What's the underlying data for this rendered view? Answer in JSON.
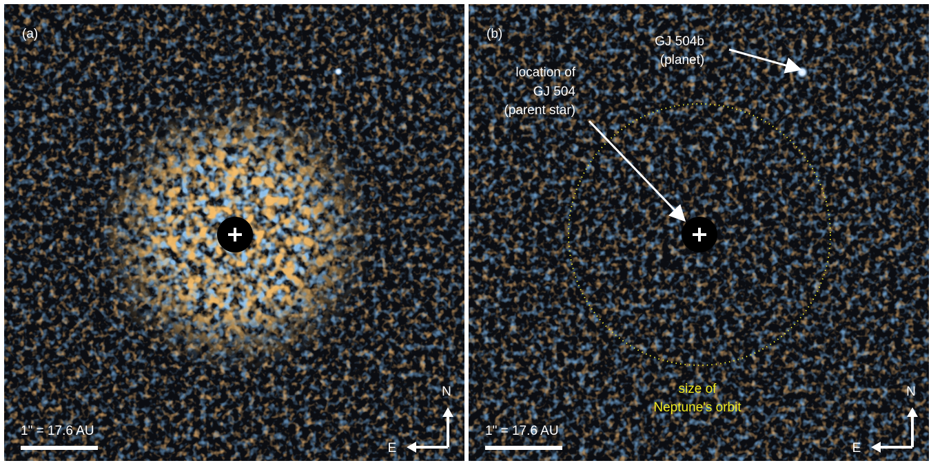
{
  "panels": [
    {
      "label": "(a)",
      "scale": "1\" = 17.6 AU",
      "compass": {
        "north": "N",
        "east": "E"
      }
    },
    {
      "label": "(b)",
      "scale": "1\" = 17.6 AU",
      "compass": {
        "north": "N",
        "east": "E"
      },
      "annotations": {
        "planet": [
          "GJ 504b",
          "(planet)"
        ],
        "star": [
          "location of",
          "GJ 504",
          "(parent star)"
        ],
        "orbit": [
          "size of",
          "Neptune's orbit"
        ]
      }
    }
  ]
}
